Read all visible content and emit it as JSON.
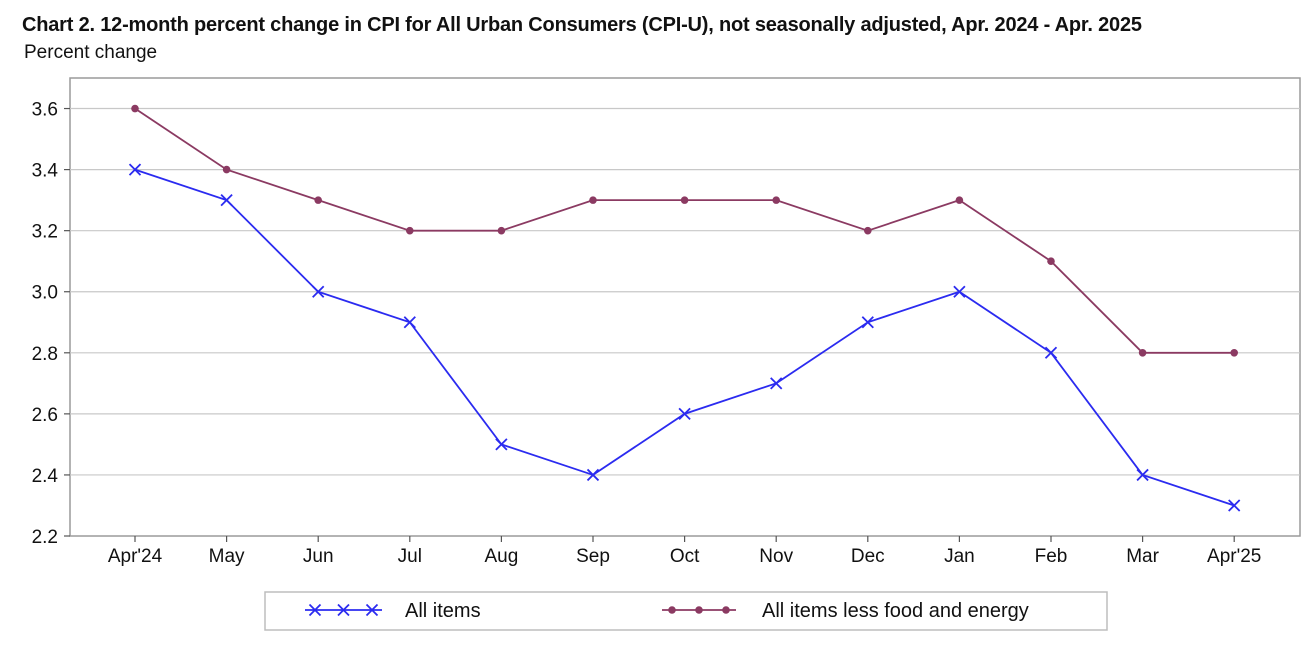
{
  "chart_data": {
    "type": "line",
    "title": "Chart 2. 12-month percent change in CPI for All Urban Consumers (CPI-U), not seasonally adjusted, Apr. 2024 - Apr. 2025",
    "subtitle": "Percent change",
    "xlabel": "",
    "ylabel": "",
    "categories": [
      "Apr'24",
      "May",
      "Jun",
      "Jul",
      "Aug",
      "Sep",
      "Oct",
      "Nov",
      "Dec",
      "Jan",
      "Feb",
      "Mar",
      "Apr'25"
    ],
    "ylim": [
      2.2,
      3.7
    ],
    "yticks": [
      "2.2",
      "2.4",
      "2.6",
      "2.8",
      "3.0",
      "3.2",
      "3.4",
      "3.6"
    ],
    "grid": true,
    "legend_placement": "bottom",
    "series": [
      {
        "name": "All items",
        "color": "#2b2bf0",
        "marker": "x",
        "values": [
          3.4,
          3.3,
          3.0,
          2.9,
          2.5,
          2.4,
          2.6,
          2.7,
          2.9,
          3.0,
          2.8,
          2.4,
          2.3
        ]
      },
      {
        "name": "All items less food and energy",
        "color": "#8b3a62",
        "marker": "dot",
        "values": [
          3.6,
          3.4,
          3.3,
          3.2,
          3.2,
          3.3,
          3.3,
          3.3,
          3.2,
          3.3,
          3.1,
          2.8,
          2.8
        ]
      }
    ]
  }
}
